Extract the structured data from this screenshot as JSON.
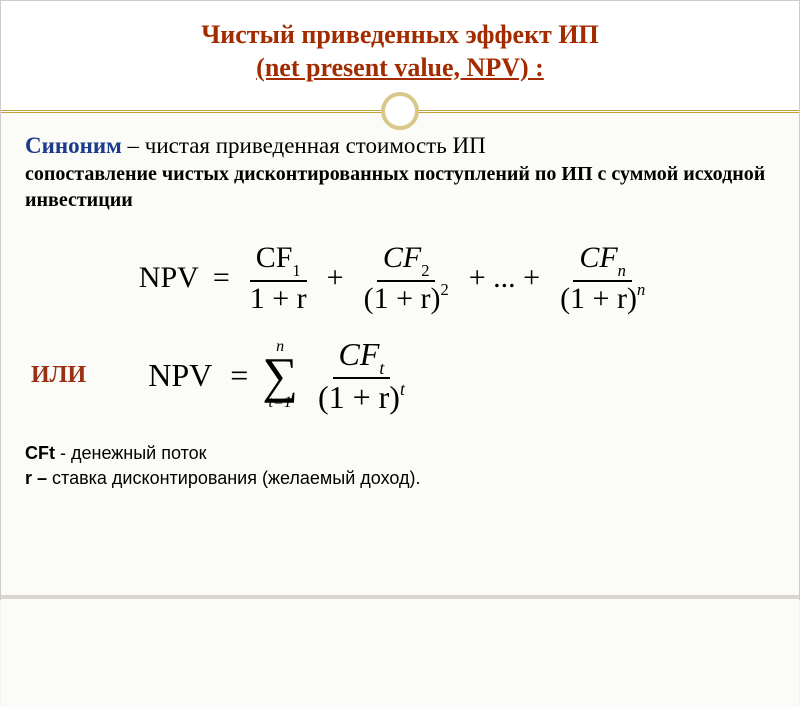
{
  "colors": {
    "title": "#a22c00",
    "accent_blue": "#1b3a8a",
    "or_label": "#9a3015",
    "border": "#bfa03a",
    "circle": "#d8c98a",
    "text": "#000000",
    "bg_content": "#fbfbf8"
  },
  "header": {
    "line1": "Чистый приведенных эффект ИП",
    "line2": "(net present value, NPV) :"
  },
  "synonym": {
    "label": "Синоним",
    "text": " – чистая приведенная стоимость ИП"
  },
  "subtext": "сопоставление чистых дисконтированных поступлений по ИП с суммой исходной инвестиции",
  "formula1": {
    "lhs": "NPV",
    "eq": "=",
    "terms": [
      {
        "num_main": "CF",
        "num_sub": "1",
        "den": "1 + r",
        "den_sup": ""
      },
      {
        "num_main": "CF",
        "num_sub": "2",
        "den": "(1 + r)",
        "den_sup": "2"
      },
      {
        "num_main": "CF",
        "num_sub": "n",
        "den": "(1 + r)",
        "den_sup": "n"
      }
    ],
    "plus": "+",
    "dots": "+ ... +"
  },
  "or_label": "ИЛИ",
  "formula2": {
    "lhs": "NPV",
    "eq": "=",
    "sigma_top": "n",
    "sigma_sym": "∑",
    "sigma_bot": "t=1",
    "num_main": "CF",
    "num_sub": "t",
    "den": "(1 + r)",
    "den_sup": "t"
  },
  "legend": {
    "cft_var": "CFt",
    "cft_desc": "  -  денежный поток",
    "r_var": "r – ",
    "r_desc": "ставка дисконтирования (желаемый доход)."
  }
}
